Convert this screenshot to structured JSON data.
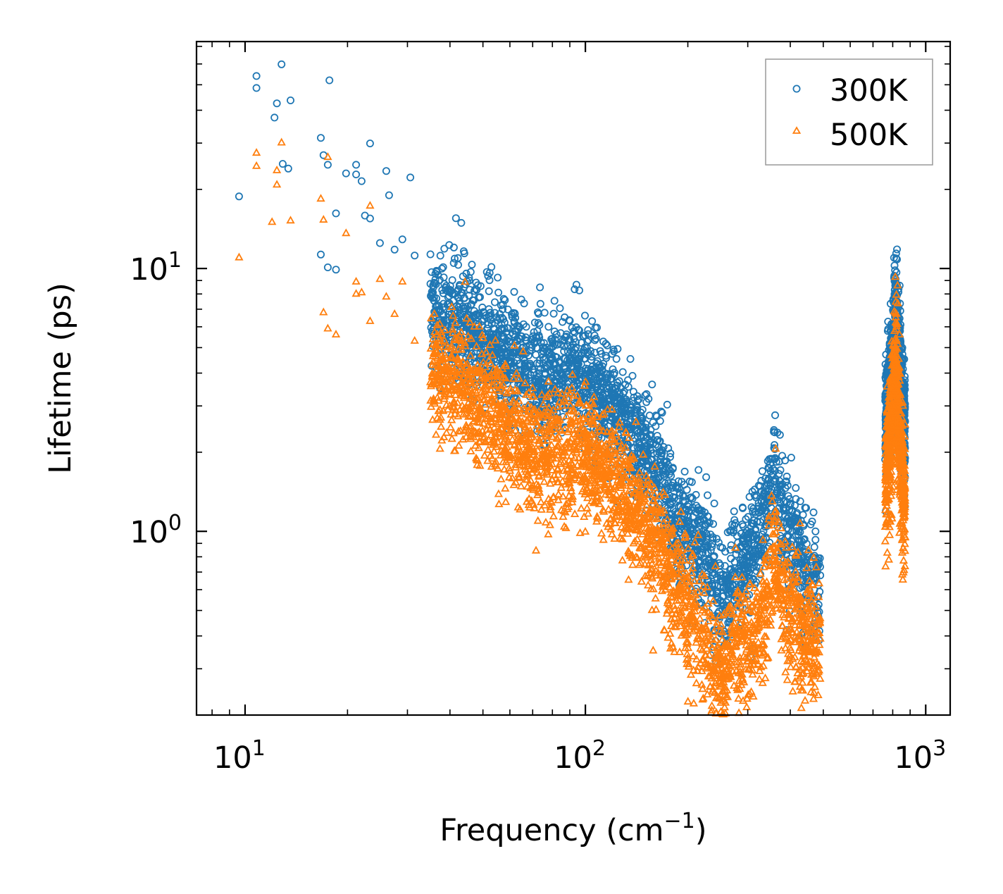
{
  "chart_data": {
    "type": "scatter",
    "title": "",
    "xlabel": "Frequency (cm",
    "xlabel_sup": "−1",
    "xlabel_tail": ")",
    "ylabel": "Lifetime (ps)",
    "xscale": "log",
    "yscale": "log",
    "xlim": [
      7.2,
      1180
    ],
    "ylim": [
      0.2,
      73
    ],
    "x_ticks": [
      {
        "value": 10,
        "base": "10",
        "exp": "1"
      },
      {
        "value": 100,
        "base": "10",
        "exp": "2"
      },
      {
        "value": 1000,
        "base": "10",
        "exp": "3"
      }
    ],
    "y_ticks": [
      {
        "value": 1,
        "base": "10",
        "exp": "0"
      },
      {
        "value": 10,
        "base": "10",
        "exp": "1"
      }
    ],
    "legend_position": "top-right",
    "series": [
      {
        "name": "300K",
        "marker": "circle",
        "color": "#1f77b4",
        "sample_points": [
          [
            9.6,
            18.8
          ],
          [
            10.8,
            48.6
          ],
          [
            10.8,
            54.0
          ],
          [
            12.2,
            37.5
          ],
          [
            12.4,
            42.5
          ],
          [
            12.8,
            59.8
          ],
          [
            13.6,
            43.6
          ],
          [
            13.4,
            24.0
          ],
          [
            12.9,
            25.0
          ],
          [
            16.7,
            31.4
          ],
          [
            17.7,
            52.0
          ],
          [
            17.5,
            24.8
          ],
          [
            17.0,
            27.0
          ],
          [
            18.5,
            16.2
          ],
          [
            16.7,
            11.3
          ],
          [
            17.5,
            10.1
          ],
          [
            18.5,
            9.9
          ],
          [
            19.8,
            23.0
          ],
          [
            21.2,
            24.8
          ],
          [
            21.2,
            22.8
          ],
          [
            22.0,
            21.5
          ],
          [
            22.5,
            15.9
          ],
          [
            23.3,
            29.9
          ],
          [
            23.3,
            15.5
          ],
          [
            24.9,
            12.5
          ],
          [
            26.0,
            23.5
          ],
          [
            26.5,
            19.0
          ],
          [
            27.5,
            11.8
          ],
          [
            29.0,
            12.9
          ],
          [
            30.6,
            22.2
          ],
          [
            31.5,
            11.2
          ],
          [
            36.5,
            9.8
          ],
          [
            41.3,
            10.9
          ],
          [
            45.6,
            9.0
          ],
          [
            53.0,
            5.3
          ],
          [
            67.0,
            6.0
          ],
          [
            75.0,
            4.6
          ],
          [
            92.0,
            4.8
          ],
          [
            110.0,
            4.3
          ],
          [
            130.0,
            3.4
          ],
          [
            158.0,
            2.6
          ],
          [
            165.0,
            2.2
          ],
          [
            180.0,
            1.3
          ],
          [
            205.0,
            1.2
          ],
          [
            220.0,
            1.2
          ],
          [
            250.0,
            0.66
          ],
          [
            290.0,
            0.92
          ],
          [
            305.0,
            0.77
          ],
          [
            360.0,
            1.88
          ],
          [
            400.0,
            1.1
          ],
          [
            450.0,
            0.64
          ],
          [
            490.0,
            0.68
          ],
          [
            800.0,
            2.8
          ],
          [
            815.0,
            8.1
          ],
          [
            830.0,
            5.0
          ],
          [
            850.0,
            2.1
          ],
          [
            870.0,
            1.9
          ]
        ]
      },
      {
        "name": "500K",
        "marker": "triangle",
        "color": "#ff7f0e",
        "sample_points": [
          [
            9.6,
            11.0
          ],
          [
            10.8,
            27.5
          ],
          [
            10.8,
            24.5
          ],
          [
            12.4,
            20.8
          ],
          [
            12.4,
            23.6
          ],
          [
            12.8,
            30.1
          ],
          [
            13.6,
            15.2
          ],
          [
            12.0,
            15.0
          ],
          [
            16.7,
            18.4
          ],
          [
            17.0,
            15.3
          ],
          [
            17.5,
            26.5
          ],
          [
            17.0,
            6.8
          ],
          [
            17.5,
            5.9
          ],
          [
            18.5,
            5.6
          ],
          [
            19.8,
            13.6
          ],
          [
            21.2,
            8.9
          ],
          [
            21.2,
            8.0
          ],
          [
            22.0,
            8.1
          ],
          [
            23.3,
            17.3
          ],
          [
            23.3,
            6.3
          ],
          [
            24.9,
            9.1
          ],
          [
            26.0,
            7.8
          ],
          [
            27.5,
            6.7
          ],
          [
            29.0,
            8.9
          ],
          [
            31.5,
            5.3
          ],
          [
            36.5,
            5.1
          ],
          [
            41.3,
            4.1
          ],
          [
            53.0,
            3.2
          ],
          [
            67.0,
            3.3
          ],
          [
            75.0,
            2.7
          ],
          [
            92.0,
            2.6
          ],
          [
            110.0,
            2.1
          ],
          [
            130.0,
            1.6
          ],
          [
            158.0,
            1.3
          ],
          [
            180.0,
            0.81
          ],
          [
            205.0,
            0.77
          ],
          [
            220.0,
            0.26
          ],
          [
            250.0,
            0.26
          ],
          [
            290.0,
            0.48
          ],
          [
            305.0,
            0.63
          ],
          [
            360.0,
            1.18
          ],
          [
            400.0,
            0.62
          ],
          [
            450.0,
            0.38
          ],
          [
            490.0,
            0.39
          ],
          [
            800.0,
            1.8
          ],
          [
            815.0,
            5.4
          ],
          [
            830.0,
            3.2
          ],
          [
            850.0,
            1.2
          ],
          [
            870.0,
            0.95
          ]
        ]
      }
    ]
  }
}
